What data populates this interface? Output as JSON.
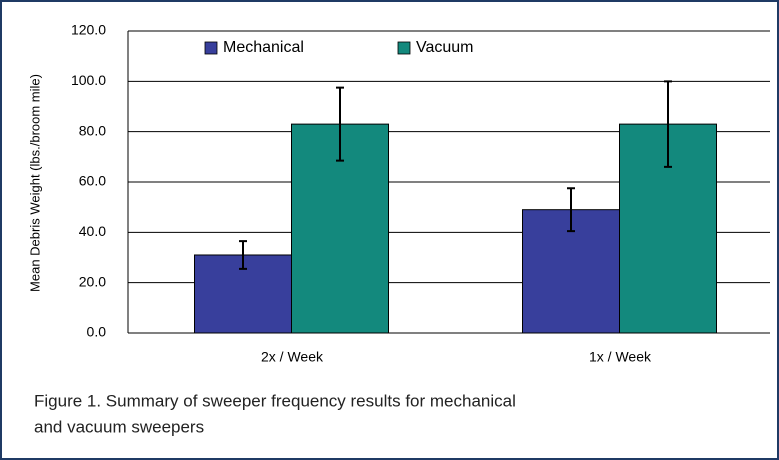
{
  "chart_data": {
    "type": "bar",
    "y_label": "Mean Debris Weight (lbs./broom mile)",
    "categories": [
      "2x / Week",
      "1x / Week"
    ],
    "series": [
      {
        "name": "Mechanical",
        "color": "#383f9c",
        "values": [
          31,
          49
        ],
        "errors": [
          5.5,
          8.5
        ]
      },
      {
        "name": "Vacuum",
        "color": "#13897d",
        "values": [
          83,
          83
        ],
        "errors": [
          14.5,
          17
        ]
      }
    ],
    "ylim": [
      0,
      120
    ],
    "yticks": [
      {
        "value": 0,
        "label": "0.0"
      },
      {
        "value": 20,
        "label": "20.0"
      },
      {
        "value": 40,
        "label": "40.0"
      },
      {
        "value": 60,
        "label": "60.0"
      },
      {
        "value": 80,
        "label": "80.0"
      },
      {
        "value": 100,
        "label": "100.0"
      },
      {
        "value": 120,
        "label": "120.0"
      }
    ],
    "grid": true,
    "caption": [
      "Figure 1. Summary of sweeper frequency results for mechanical",
      "and vacuum sweepers"
    ]
  }
}
